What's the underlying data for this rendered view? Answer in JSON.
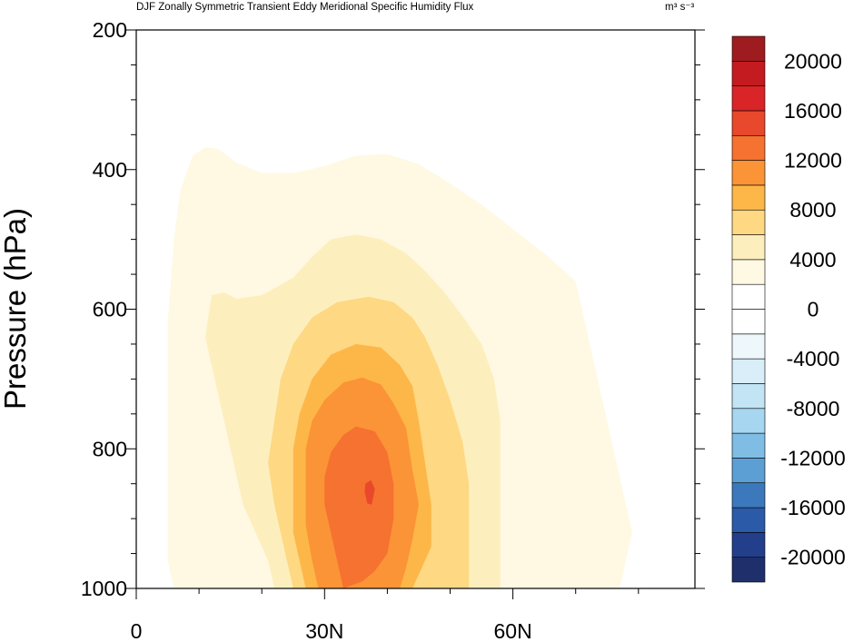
{
  "chart_data": {
    "type": "heatmap",
    "title": "DJF Zonally Symmetric Transient Eddy Meridional Specific Humidity Flux",
    "units": "m³ s⁻³",
    "xlabel": "",
    "ylabel": "Pressure (hPa)",
    "x_ticks": [
      {
        "value": 0,
        "label": "0"
      },
      {
        "value": 30,
        "label": "30N"
      },
      {
        "value": 60,
        "label": "60N"
      }
    ],
    "xlim": [
      0,
      89
    ],
    "y_ticks": [
      {
        "value": 200,
        "label": "200"
      },
      {
        "value": 400,
        "label": "400"
      },
      {
        "value": 600,
        "label": "600"
      },
      {
        "value": 800,
        "label": "800"
      },
      {
        "value": 1000,
        "label": "1000"
      }
    ],
    "ylim": [
      200,
      1000
    ],
    "y_inverted": true,
    "colorbar": {
      "placement": "right",
      "levels": [
        -22000,
        -20000,
        -18000,
        -16000,
        -14000,
        -12000,
        -10000,
        -8000,
        -6000,
        -4000,
        -2000,
        0,
        2000,
        4000,
        6000,
        8000,
        10000,
        12000,
        14000,
        16000,
        18000,
        20000,
        22000
      ],
      "labels": [
        "20000",
        "16000",
        "12000",
        "8000",
        "4000",
        "0",
        "-4000",
        "-8000",
        "-12000",
        "-16000",
        "-20000"
      ],
      "label_values": [
        20000,
        16000,
        12000,
        8000,
        4000,
        0,
        -4000,
        -8000,
        -12000,
        -16000,
        -20000
      ],
      "colors": [
        "#1f2f6b",
        "#233f8c",
        "#2b5ba8",
        "#3b78bc",
        "#5b9fd5",
        "#7fbde5",
        "#a6d6f0",
        "#c2e4f5",
        "#d9eef8",
        "#eef7fb",
        "#ffffff",
        "#ffffff",
        "#fff8e3",
        "#fdefbd",
        "#fed883",
        "#fdb749",
        "#fb9436",
        "#f57230",
        "#e8482b",
        "#d92527",
        "#c41b20",
        "#9e1c1f"
      ]
    },
    "contour_regions": [
      {
        "min_value": 2000,
        "color": "#fff8e3",
        "points": [
          [
            6,
            1000
          ],
          [
            5,
            960
          ],
          [
            5,
            880
          ],
          [
            5,
            760
          ],
          [
            5,
            620
          ],
          [
            6,
            500
          ],
          [
            7,
            430
          ],
          [
            9,
            380
          ],
          [
            11,
            368
          ],
          [
            13,
            370
          ],
          [
            16,
            390
          ],
          [
            20,
            405
          ],
          [
            25,
            405
          ],
          [
            30,
            395
          ],
          [
            35,
            380
          ],
          [
            40,
            378
          ],
          [
            45,
            392
          ],
          [
            50,
            420
          ],
          [
            55,
            450
          ],
          [
            60,
            485
          ],
          [
            65,
            520
          ],
          [
            70,
            560
          ],
          [
            72,
            640
          ],
          [
            74,
            720
          ],
          [
            76,
            800
          ],
          [
            78,
            880
          ],
          [
            79,
            920
          ],
          [
            78,
            960
          ],
          [
            77,
            1000
          ]
        ]
      },
      {
        "min_value": 4000,
        "color": "#fdefbd",
        "points": [
          [
            22,
            1000
          ],
          [
            21,
            960
          ],
          [
            19,
            920
          ],
          [
            17,
            880
          ],
          [
            15,
            800
          ],
          [
            13,
            720
          ],
          [
            11,
            640
          ],
          [
            12,
            580
          ],
          [
            14,
            576
          ],
          [
            16,
            585
          ],
          [
            20,
            580
          ],
          [
            25,
            555
          ],
          [
            28,
            525
          ],
          [
            31,
            500
          ],
          [
            35,
            493
          ],
          [
            39,
            500
          ],
          [
            43,
            520
          ],
          [
            46,
            545
          ],
          [
            49,
            575
          ],
          [
            52,
            610
          ],
          [
            55,
            650
          ],
          [
            57,
            700
          ],
          [
            58,
            760
          ],
          [
            58,
            820
          ],
          [
            58,
            880
          ],
          [
            58,
            930
          ],
          [
            58,
            1000
          ]
        ]
      },
      {
        "min_value": 6000,
        "color": "#fed883",
        "points": [
          [
            25,
            1000
          ],
          [
            24,
            960
          ],
          [
            23,
            920
          ],
          [
            22,
            880
          ],
          [
            21,
            820
          ],
          [
            22,
            760
          ],
          [
            23,
            700
          ],
          [
            25,
            650
          ],
          [
            28,
            612
          ],
          [
            32,
            590
          ],
          [
            37,
            582
          ],
          [
            41,
            590
          ],
          [
            44,
            612
          ],
          [
            46,
            640
          ],
          [
            48,
            680
          ],
          [
            50,
            730
          ],
          [
            52,
            790
          ],
          [
            53,
            850
          ],
          [
            53,
            900
          ],
          [
            53,
            1000
          ]
        ]
      },
      {
        "min_value": 8000,
        "color": "#fdb749",
        "points": [
          [
            27,
            1000
          ],
          [
            26,
            960
          ],
          [
            25,
            920
          ],
          [
            25,
            860
          ],
          [
            25,
            800
          ],
          [
            26,
            750
          ],
          [
            28,
            700
          ],
          [
            31,
            665
          ],
          [
            35,
            650
          ],
          [
            39,
            655
          ],
          [
            42,
            680
          ],
          [
            44,
            710
          ],
          [
            45,
            760
          ],
          [
            46,
            820
          ],
          [
            47,
            880
          ],
          [
            47,
            940
          ],
          [
            45,
            980
          ],
          [
            44,
            1000
          ]
        ]
      },
      {
        "min_value": 10000,
        "color": "#fb9436",
        "points": [
          [
            29,
            1000
          ],
          [
            28,
            960
          ],
          [
            27,
            910
          ],
          [
            27,
            860
          ],
          [
            27,
            800
          ],
          [
            28,
            760
          ],
          [
            30,
            730
          ],
          [
            33,
            705
          ],
          [
            36,
            698
          ],
          [
            39,
            708
          ],
          [
            41,
            735
          ],
          [
            43,
            770
          ],
          [
            44,
            830
          ],
          [
            45,
            880
          ],
          [
            44,
            930
          ],
          [
            43,
            970
          ],
          [
            42,
            1000
          ]
        ]
      },
      {
        "min_value": 12000,
        "color": "#f57230",
        "points": [
          [
            33,
            1000
          ],
          [
            32,
            960
          ],
          [
            31,
            920
          ],
          [
            30,
            880
          ],
          [
            30,
            840
          ],
          [
            31,
            805
          ],
          [
            33,
            780
          ],
          [
            35,
            768
          ],
          [
            38,
            775
          ],
          [
            40,
            805
          ],
          [
            41,
            850
          ],
          [
            41,
            900
          ],
          [
            40,
            950
          ],
          [
            38,
            975
          ],
          [
            36,
            990
          ]
        ]
      },
      {
        "min_value": 14000,
        "color": "#e8482b",
        "points": [
          [
            36.5,
            850
          ],
          [
            37.4,
            845
          ],
          [
            38.0,
            858
          ],
          [
            37.5,
            880
          ],
          [
            36.8,
            878
          ],
          [
            36.4,
            862
          ]
        ]
      },
      {
        "min_value": 2000,
        "color": "#fff8e3",
        "points": [
          [
            7,
            895
          ],
          [
            8.5,
            903
          ],
          [
            9,
            925
          ],
          [
            8,
            945
          ],
          [
            7,
            935
          ],
          [
            6.7,
            915
          ]
        ]
      }
    ]
  }
}
